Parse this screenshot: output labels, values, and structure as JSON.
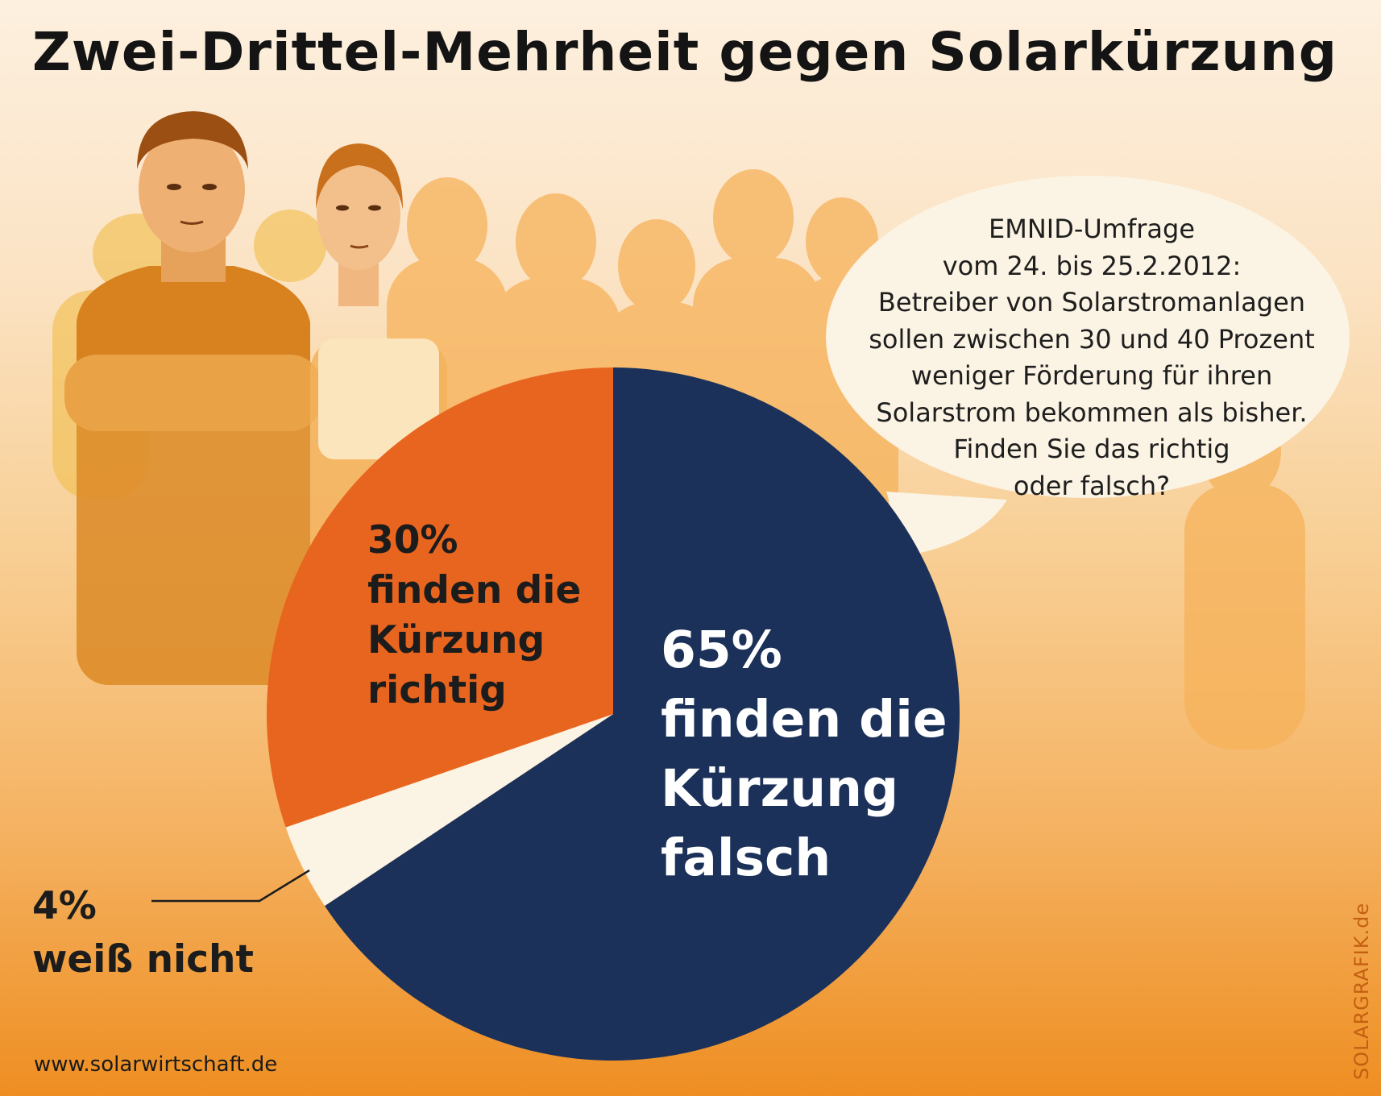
{
  "title": "Zwei-Drittel-Mehrheit gegen Solarkürzung",
  "question_lines": [
    "EMNID-Umfrage",
    "vom 24. bis 25.2.2012:",
    "Betreiber von Solarstromanlagen",
    "sollen zwischen 30 und 40 Prozent",
    "weniger Förderung für ihren",
    "Solarstrom bekommen als bisher.",
    "Finden Sie das richtig",
    "oder falsch?"
  ],
  "footer_url": "www.solarwirtschaft.de",
  "brand": "SOLARGRAFIK.de",
  "colors": {
    "falsch": "#1c3159",
    "richtig": "#e8651f",
    "weiss_nicht": "#fbf3e3",
    "bubble": "#fbf3e3"
  },
  "chart_data": {
    "type": "pie",
    "slices": [
      {
        "key": "falsch",
        "value": 65,
        "percent_label": "65%",
        "label_lines": [
          "finden die",
          "Kürzung",
          "falsch"
        ]
      },
      {
        "key": "weiss_nicht",
        "value": 4,
        "percent_label": "4%",
        "label_lines": [
          "weiß nicht"
        ]
      },
      {
        "key": "richtig",
        "value": 30,
        "percent_label": "30%",
        "label_lines": [
          "finden die",
          "Kürzung",
          "richtig"
        ]
      }
    ]
  }
}
